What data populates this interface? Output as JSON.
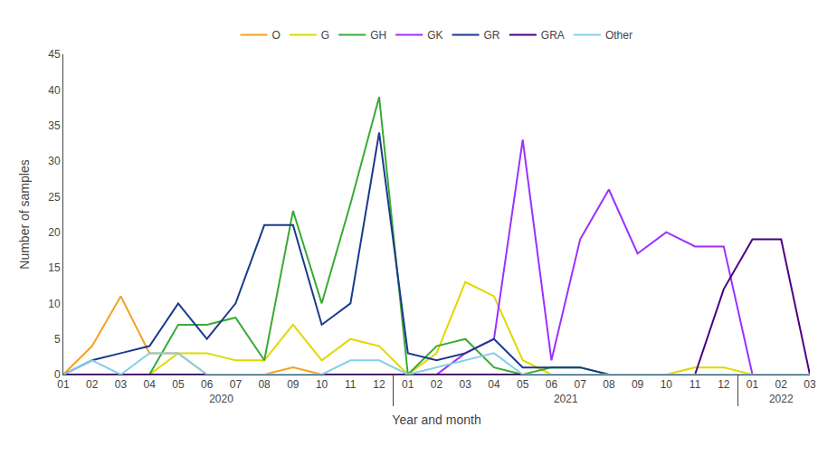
{
  "chart_data": {
    "type": "line",
    "categories": [
      [
        "2020",
        "01"
      ],
      [
        "2020",
        "02"
      ],
      [
        "2020",
        "03"
      ],
      [
        "2020",
        "04"
      ],
      [
        "2020",
        "05"
      ],
      [
        "2020",
        "06"
      ],
      [
        "2020",
        "07"
      ],
      [
        "2020",
        "08"
      ],
      [
        "2020",
        "09"
      ],
      [
        "2020",
        "10"
      ],
      [
        "2020",
        "11"
      ],
      [
        "2020",
        "12"
      ],
      [
        "2021",
        "01"
      ],
      [
        "2021",
        "02"
      ],
      [
        "2021",
        "03"
      ],
      [
        "2021",
        "04"
      ],
      [
        "2021",
        "05"
      ],
      [
        "2021",
        "06"
      ],
      [
        "2021",
        "07"
      ],
      [
        "2021",
        "08"
      ],
      [
        "2021",
        "09"
      ],
      [
        "2021",
        "10"
      ],
      [
        "2021",
        "11"
      ],
      [
        "2021",
        "12"
      ],
      [
        "2022",
        "01"
      ],
      [
        "2022",
        "02"
      ],
      [
        "2022",
        "03"
      ]
    ],
    "series": [
      {
        "name": "O",
        "color": "#F4A223",
        "values": [
          0,
          4,
          11,
          3,
          3,
          0,
          0,
          0,
          1,
          0,
          0,
          0,
          0,
          0,
          0,
          0,
          0,
          0,
          0,
          0,
          0,
          0,
          0,
          0,
          0,
          0,
          0
        ]
      },
      {
        "name": "G",
        "color": "#E0D800",
        "values": [
          0,
          0,
          0,
          0,
          3,
          3,
          2,
          2,
          7,
          2,
          5,
          4,
          0,
          3,
          13,
          11,
          2,
          0,
          0,
          0,
          0,
          0,
          1,
          1,
          0,
          0,
          0
        ]
      },
      {
        "name": "GH",
        "color": "#3AAA35",
        "values": [
          0,
          0,
          0,
          0,
          7,
          7,
          8,
          2,
          23,
          10,
          24,
          39,
          0,
          4,
          5,
          1,
          0,
          1,
          1,
          0,
          0,
          0,
          0,
          0,
          0,
          0,
          0
        ]
      },
      {
        "name": "GK",
        "color": "#9B30FF",
        "values": [
          0,
          0,
          0,
          0,
          0,
          0,
          0,
          0,
          0,
          0,
          0,
          0,
          0,
          0,
          3,
          5,
          33,
          2,
          19,
          26,
          17,
          20,
          18,
          18,
          0,
          0,
          0
        ]
      },
      {
        "name": "GR",
        "color": "#1A3A8C",
        "values": [
          0,
          2,
          3,
          4,
          10,
          5,
          10,
          21,
          21,
          7,
          10,
          34,
          3,
          2,
          3,
          5,
          1,
          1,
          1,
          0,
          0,
          0,
          0,
          0,
          0,
          0,
          0
        ]
      },
      {
        "name": "GRA",
        "color": "#4B0082",
        "values": [
          0,
          0,
          0,
          0,
          0,
          0,
          0,
          0,
          0,
          0,
          0,
          0,
          0,
          0,
          0,
          0,
          0,
          0,
          0,
          0,
          0,
          0,
          0,
          12,
          19,
          19,
          0
        ]
      },
      {
        "name": "Other",
        "color": "#87CEEB",
        "values": [
          0,
          2,
          0,
          3,
          3,
          0,
          0,
          0,
          0,
          0,
          2,
          2,
          0,
          1,
          2,
          3,
          0,
          0,
          0,
          0,
          0,
          0,
          0,
          0,
          0,
          0,
          0
        ]
      }
    ],
    "xlabel": "Year and month",
    "ylabel": "Number of samples",
    "ylim": [
      0,
      45
    ],
    "yticks": [
      0,
      5,
      10,
      15,
      20,
      25,
      30,
      35,
      40,
      45
    ],
    "grid": false,
    "legend": "top"
  }
}
